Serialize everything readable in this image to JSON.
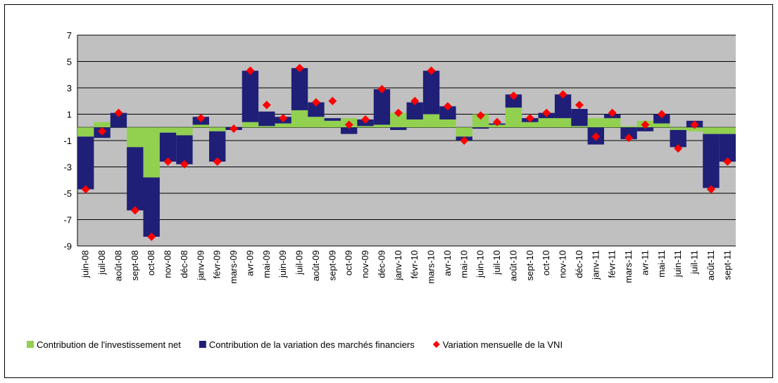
{
  "chart_data": {
    "type": "bar",
    "stacked": true,
    "categories": [
      "juin-08",
      "juil-08",
      "août-08",
      "sept-08",
      "oct-08",
      "nov-08",
      "déc-08",
      "janv-09",
      "févr-09",
      "mars-09",
      "avr-09",
      "mai-09",
      "juin-09",
      "juil-09",
      "août-09",
      "sept-09",
      "oct-09",
      "nov-09",
      "déc-09",
      "janv-10",
      "févr-10",
      "mars-10",
      "avr-10",
      "mai-10",
      "juin-10",
      "juil-10",
      "août-10",
      "sept-10",
      "oct-10",
      "nov-10",
      "déc-10",
      "janv-11",
      "févr-11",
      "mars-11",
      "avr-11",
      "mai-11",
      "juin-11",
      "juil-11",
      "août-11",
      "sept-11"
    ],
    "series": [
      {
        "name": "Contribution de l'investissement net",
        "color": "#92d050",
        "type": "bar",
        "values": [
          -0.7,
          0.4,
          0,
          -1.5,
          -3.8,
          -0.4,
          -0.6,
          0.2,
          -0.3,
          0,
          0.4,
          0.1,
          0.3,
          1.3,
          0.8,
          0.5,
          0.7,
          0.1,
          0.2,
          1.1,
          0.6,
          1.0,
          0.6,
          -0.7,
          1.0,
          0.2,
          1.5,
          0.4,
          0.7,
          0.7,
          0.1,
          0.7,
          0.7,
          0.1,
          0.5,
          0.3,
          -0.2,
          -0.3,
          -0.5,
          -0.5
        ]
      },
      {
        "name": "Contribution de la variation des marchés financiers",
        "color": "#1f1f78",
        "type": "bar",
        "values": [
          -4.0,
          -0.8,
          1.1,
          -4.8,
          -4.5,
          -2.2,
          -2.2,
          0.6,
          -2.3,
          -0.2,
          3.9,
          1.1,
          0.5,
          3.2,
          1.1,
          0.2,
          -0.5,
          0.5,
          2.7,
          -0.2,
          1.3,
          3.3,
          1.0,
          -0.3,
          -0.1,
          0.1,
          1.0,
          0.3,
          0.4,
          1.8,
          1.3,
          -1.3,
          0.3,
          -0.9,
          -0.3,
          0.7,
          -1.3,
          0.5,
          -4.1,
          -2.1
        ]
      },
      {
        "name": "Variation mensuelle de la VNI",
        "color": "#ff0000",
        "type": "diamond",
        "values": [
          -4.7,
          -0.3,
          1.1,
          -6.3,
          -8.3,
          -2.6,
          -2.8,
          0.7,
          -2.6,
          -0.1,
          4.3,
          1.7,
          0.7,
          4.5,
          1.9,
          2.0,
          0.2,
          0.6,
          2.9,
          1.1,
          2.0,
          4.3,
          1.6,
          -1.0,
          0.9,
          0.4,
          2.4,
          0.7,
          1.1,
          2.5,
          1.7,
          -0.7,
          1.1,
          -0.8,
          0.2,
          1.0,
          -1.6,
          0.2,
          -4.7,
          -2.6
        ]
      }
    ],
    "ylim": [
      -9,
      7
    ],
    "yticks": [
      -9,
      -7,
      -5,
      -3,
      -1,
      1,
      3,
      5,
      7
    ],
    "grid": true,
    "legend": "bottom"
  }
}
